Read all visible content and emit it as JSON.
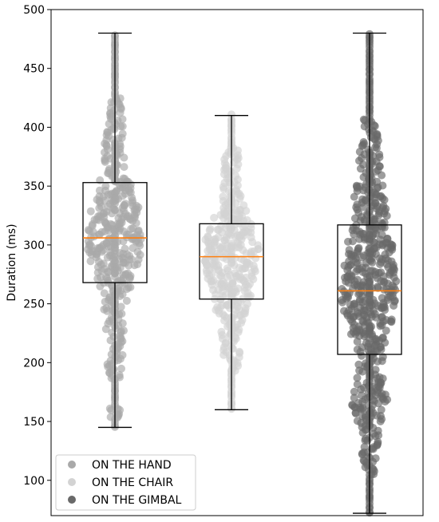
{
  "chart_data": {
    "type": "box-swarm",
    "ylabel": "Duration (ms)",
    "ylim": [
      70,
      500
    ],
    "yticks": [
      100,
      150,
      200,
      250,
      300,
      350,
      400,
      450,
      500
    ],
    "grid": false,
    "legend_position": "bottom-left",
    "median_color": "#ff7f0e",
    "series": [
      {
        "name": "ON THE HAND",
        "color": "#a9a9a9",
        "whisker_low": 145,
        "q1": 268,
        "median": 306,
        "q3": 353,
        "whisker_high": 480,
        "density": [
          [
            145,
            0.15
          ],
          [
            155,
            0.25
          ],
          [
            165,
            0.2
          ],
          [
            180,
            0.2
          ],
          [
            195,
            0.25
          ],
          [
            210,
            0.3
          ],
          [
            225,
            0.3
          ],
          [
            240,
            0.35
          ],
          [
            255,
            0.45
          ],
          [
            268,
            0.6
          ],
          [
            280,
            0.75
          ],
          [
            290,
            0.9
          ],
          [
            300,
            1.0
          ],
          [
            310,
            0.95
          ],
          [
            320,
            0.9
          ],
          [
            330,
            0.85
          ],
          [
            340,
            0.7
          ],
          [
            350,
            0.6
          ],
          [
            360,
            0.45
          ],
          [
            370,
            0.4
          ],
          [
            380,
            0.4
          ],
          [
            390,
            0.35
          ],
          [
            400,
            0.3
          ],
          [
            415,
            0.25
          ],
          [
            430,
            0.2
          ],
          [
            450,
            0.1
          ],
          [
            465,
            0.1
          ],
          [
            480,
            0.15
          ]
        ]
      },
      {
        "name": "ON THE CHAIR",
        "color": "#d3d3d3",
        "whisker_low": 160,
        "q1": 254,
        "median": 290,
        "q3": 318,
        "whisker_high": 410,
        "density": [
          [
            160,
            0.1
          ],
          [
            175,
            0.15
          ],
          [
            190,
            0.2
          ],
          [
            205,
            0.3
          ],
          [
            220,
            0.35
          ],
          [
            235,
            0.4
          ],
          [
            245,
            0.6
          ],
          [
            255,
            0.7
          ],
          [
            265,
            0.8
          ],
          [
            275,
            0.85
          ],
          [
            285,
            0.95
          ],
          [
            295,
            1.0
          ],
          [
            305,
            0.9
          ],
          [
            315,
            0.75
          ],
          [
            325,
            0.6
          ],
          [
            335,
            0.45
          ],
          [
            345,
            0.35
          ],
          [
            355,
            0.3
          ],
          [
            365,
            0.25
          ],
          [
            375,
            0.25
          ],
          [
            385,
            0.2
          ],
          [
            395,
            0.15
          ],
          [
            405,
            0.1
          ]
        ]
      },
      {
        "name": "ON THE GIMBAL",
        "color": "#696969",
        "whisker_low": 72,
        "q1": 207,
        "median": 261,
        "q3": 317,
        "whisker_high": 480,
        "density": [
          [
            72,
            0.12
          ],
          [
            85,
            0.15
          ],
          [
            100,
            0.2
          ],
          [
            115,
            0.25
          ],
          [
            130,
            0.3
          ],
          [
            145,
            0.35
          ],
          [
            160,
            0.6
          ],
          [
            170,
            0.65
          ],
          [
            180,
            0.55
          ],
          [
            190,
            0.45
          ],
          [
            200,
            0.45
          ],
          [
            210,
            0.5
          ],
          [
            220,
            0.6
          ],
          [
            230,
            0.75
          ],
          [
            240,
            0.85
          ],
          [
            250,
            0.95
          ],
          [
            260,
            1.0
          ],
          [
            270,
            0.95
          ],
          [
            280,
            0.9
          ],
          [
            290,
            0.85
          ],
          [
            300,
            0.8
          ],
          [
            310,
            0.75
          ],
          [
            320,
            0.65
          ],
          [
            330,
            0.6
          ],
          [
            340,
            0.55
          ],
          [
            350,
            0.5
          ],
          [
            360,
            0.45
          ],
          [
            370,
            0.4
          ],
          [
            380,
            0.35
          ],
          [
            390,
            0.3
          ],
          [
            400,
            0.25
          ],
          [
            410,
            0.2
          ],
          [
            420,
            0.2
          ],
          [
            430,
            0.18
          ],
          [
            440,
            0.15
          ],
          [
            455,
            0.15
          ],
          [
            470,
            0.15
          ],
          [
            480,
            0.15
          ]
        ]
      }
    ]
  }
}
